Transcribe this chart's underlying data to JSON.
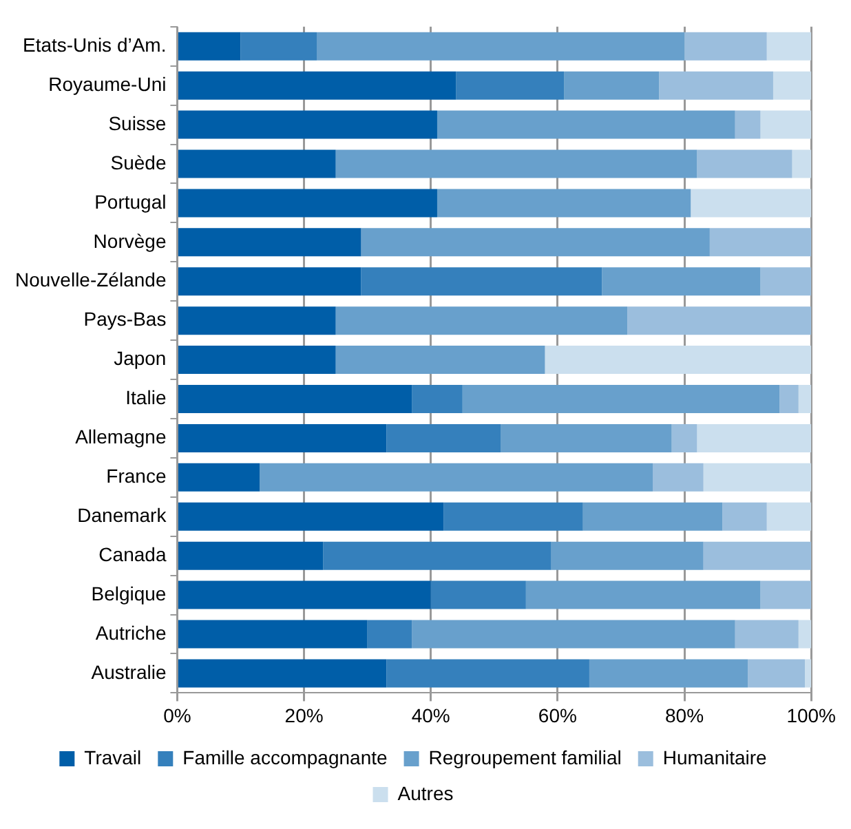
{
  "chart_data": {
    "type": "bar",
    "orientation": "horizontal",
    "stacked": true,
    "legend": "bottom",
    "grid": "x",
    "categories": [
      "Etats-Unis d’Am.",
      "Royaume-Uni",
      "Suisse",
      "Suède",
      "Portugal",
      "Norvège",
      "Nouvelle-Zélande",
      "Pays-Bas",
      "Japon",
      "Italie",
      "Allemagne",
      "France",
      "Danemark",
      "Canada",
      "Belgique",
      "Autriche",
      "Australie"
    ],
    "xlim": [
      0,
      100
    ],
    "xticks": [
      {
        "value": 0,
        "label": "0%"
      },
      {
        "value": 20,
        "label": "20%"
      },
      {
        "value": 40,
        "label": "40%"
      },
      {
        "value": 60,
        "label": "60%"
      },
      {
        "value": 80,
        "label": "80%"
      },
      {
        "value": 100,
        "label": "100%"
      }
    ],
    "series": [
      {
        "name": "Travail",
        "color": "#005ea8",
        "values": [
          10,
          44,
          41,
          25,
          41,
          29,
          29,
          25,
          25,
          37,
          33,
          13,
          42,
          23,
          40,
          30,
          33
        ]
      },
      {
        "name": "Famille accompagnante",
        "color": "#3580bc",
        "values": [
          12,
          17,
          0,
          0,
          0,
          0,
          38,
          0,
          0,
          8,
          18,
          0,
          22,
          36,
          15,
          7,
          32
        ]
      },
      {
        "name": "Regroupement familial",
        "color": "#68a0cc",
        "values": [
          58,
          15,
          47,
          57,
          40,
          55,
          25,
          46,
          33,
          50,
          27,
          62,
          22,
          24,
          37,
          51,
          25
        ]
      },
      {
        "name": "Humanitaire",
        "color": "#9bbedd",
        "values": [
          13,
          18,
          4,
          15,
          0,
          16,
          8,
          29,
          0,
          3,
          4,
          8,
          7,
          17,
          8,
          10,
          9
        ]
      },
      {
        "name": "Autres",
        "color": "#cbdfee",
        "values": [
          7,
          6,
          8,
          3,
          19,
          0,
          0,
          0,
          42,
          2,
          18,
          17,
          7,
          0,
          0,
          2,
          1
        ]
      }
    ]
  }
}
